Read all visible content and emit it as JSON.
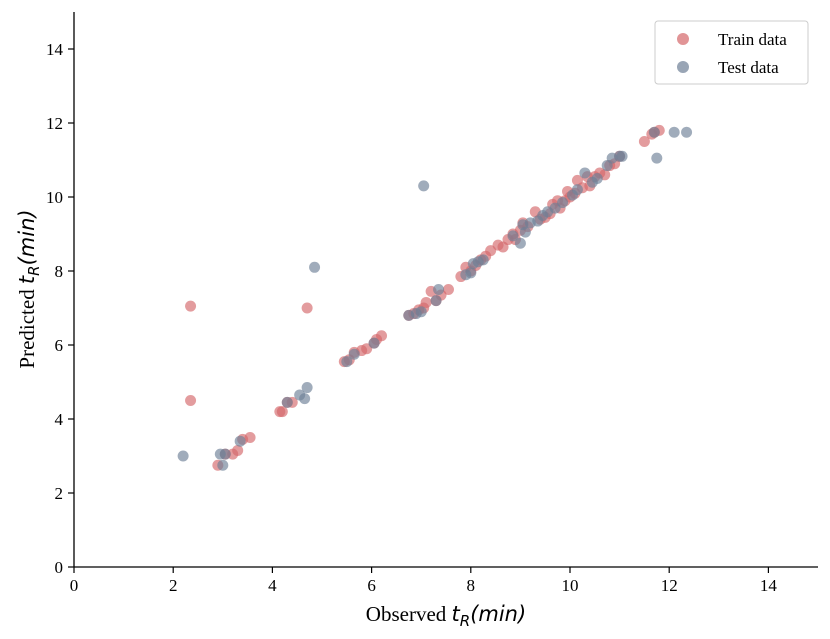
{
  "chart_data": {
    "type": "scatter",
    "xlabel": {
      "prefix": "Observed",
      "symbol": "t",
      "subscript": "R",
      "unit": "(min)"
    },
    "ylabel": {
      "prefix": "Predicted",
      "symbol": "t",
      "subscript": "R",
      "unit": "(min)"
    },
    "xlim": [
      0,
      15
    ],
    "ylim": [
      0,
      15
    ],
    "xticks": [
      "0",
      "2",
      "4",
      "6",
      "8",
      "10",
      "12",
      "14"
    ],
    "yticks": [
      "0",
      "2",
      "4",
      "6",
      "8",
      "10",
      "12",
      "14"
    ],
    "grid": false,
    "legend_position": "top-right",
    "series": [
      {
        "name": "Train data",
        "color": "#d4676a",
        "points": [
          [
            2.35,
            7.05
          ],
          [
            2.35,
            4.5
          ],
          [
            2.9,
            2.75
          ],
          [
            3.05,
            3.05
          ],
          [
            3.2,
            3.05
          ],
          [
            3.3,
            3.15
          ],
          [
            3.4,
            3.45
          ],
          [
            3.55,
            3.5
          ],
          [
            4.15,
            4.2
          ],
          [
            4.2,
            4.2
          ],
          [
            4.3,
            4.45
          ],
          [
            4.4,
            4.45
          ],
          [
            4.7,
            7.0
          ],
          [
            5.45,
            5.55
          ],
          [
            5.55,
            5.6
          ],
          [
            5.65,
            5.8
          ],
          [
            5.8,
            5.85
          ],
          [
            5.9,
            5.9
          ],
          [
            6.05,
            6.05
          ],
          [
            6.1,
            6.15
          ],
          [
            6.2,
            6.25
          ],
          [
            6.75,
            6.8
          ],
          [
            6.85,
            6.85
          ],
          [
            6.95,
            6.95
          ],
          [
            7.05,
            7.0
          ],
          [
            7.1,
            7.15
          ],
          [
            7.2,
            7.45
          ],
          [
            7.3,
            7.2
          ],
          [
            7.4,
            7.35
          ],
          [
            7.55,
            7.5
          ],
          [
            7.8,
            7.85
          ],
          [
            7.9,
            8.1
          ],
          [
            8.0,
            8.0
          ],
          [
            8.1,
            8.15
          ],
          [
            8.2,
            8.3
          ],
          [
            8.3,
            8.4
          ],
          [
            8.4,
            8.55
          ],
          [
            8.55,
            8.7
          ],
          [
            8.65,
            8.65
          ],
          [
            8.75,
            8.85
          ],
          [
            8.85,
            9.0
          ],
          [
            8.9,
            8.85
          ],
          [
            9.0,
            9.1
          ],
          [
            9.05,
            9.3
          ],
          [
            9.15,
            9.2
          ],
          [
            9.3,
            9.6
          ],
          [
            9.4,
            9.4
          ],
          [
            9.5,
            9.45
          ],
          [
            9.6,
            9.55
          ],
          [
            9.65,
            9.8
          ],
          [
            9.75,
            9.9
          ],
          [
            9.8,
            9.7
          ],
          [
            9.9,
            9.9
          ],
          [
            9.95,
            10.15
          ],
          [
            10.0,
            10.0
          ],
          [
            10.1,
            10.1
          ],
          [
            10.15,
            10.45
          ],
          [
            10.25,
            10.25
          ],
          [
            10.35,
            10.55
          ],
          [
            10.4,
            10.3
          ],
          [
            10.5,
            10.55
          ],
          [
            10.6,
            10.65
          ],
          [
            10.7,
            10.6
          ],
          [
            10.8,
            10.85
          ],
          [
            10.9,
            10.9
          ],
          [
            11.0,
            11.1
          ],
          [
            11.5,
            11.5
          ],
          [
            11.65,
            11.7
          ],
          [
            11.7,
            11.75
          ],
          [
            11.8,
            11.8
          ]
        ]
      },
      {
        "name": "Test data",
        "color": "#6d7f96",
        "points": [
          [
            2.2,
            3.0
          ],
          [
            2.95,
            3.05
          ],
          [
            3.0,
            2.75
          ],
          [
            3.05,
            3.05
          ],
          [
            3.35,
            3.4
          ],
          [
            4.3,
            4.45
          ],
          [
            4.55,
            4.65
          ],
          [
            4.65,
            4.55
          ],
          [
            4.7,
            4.85
          ],
          [
            4.85,
            8.1
          ],
          [
            5.5,
            5.55
          ],
          [
            5.65,
            5.75
          ],
          [
            6.05,
            6.05
          ],
          [
            6.75,
            6.8
          ],
          [
            6.9,
            6.85
          ],
          [
            7.0,
            6.9
          ],
          [
            7.05,
            10.3
          ],
          [
            7.3,
            7.2
          ],
          [
            7.35,
            7.5
          ],
          [
            7.9,
            7.9
          ],
          [
            8.0,
            7.95
          ],
          [
            8.05,
            8.2
          ],
          [
            8.15,
            8.25
          ],
          [
            8.25,
            8.3
          ],
          [
            8.85,
            8.95
          ],
          [
            9.0,
            8.75
          ],
          [
            9.05,
            9.25
          ],
          [
            9.1,
            9.05
          ],
          [
            9.2,
            9.3
          ],
          [
            9.35,
            9.35
          ],
          [
            9.45,
            9.5
          ],
          [
            9.55,
            9.6
          ],
          [
            9.7,
            9.7
          ],
          [
            9.85,
            9.85
          ],
          [
            10.05,
            10.05
          ],
          [
            10.15,
            10.2
          ],
          [
            10.3,
            10.65
          ],
          [
            10.45,
            10.4
          ],
          [
            10.55,
            10.5
          ],
          [
            10.75,
            10.85
          ],
          [
            10.85,
            11.05
          ],
          [
            11.0,
            11.1
          ],
          [
            11.05,
            11.1
          ],
          [
            11.7,
            11.75
          ],
          [
            11.75,
            11.05
          ],
          [
            12.1,
            11.75
          ],
          [
            12.35,
            11.75
          ]
        ]
      }
    ]
  }
}
